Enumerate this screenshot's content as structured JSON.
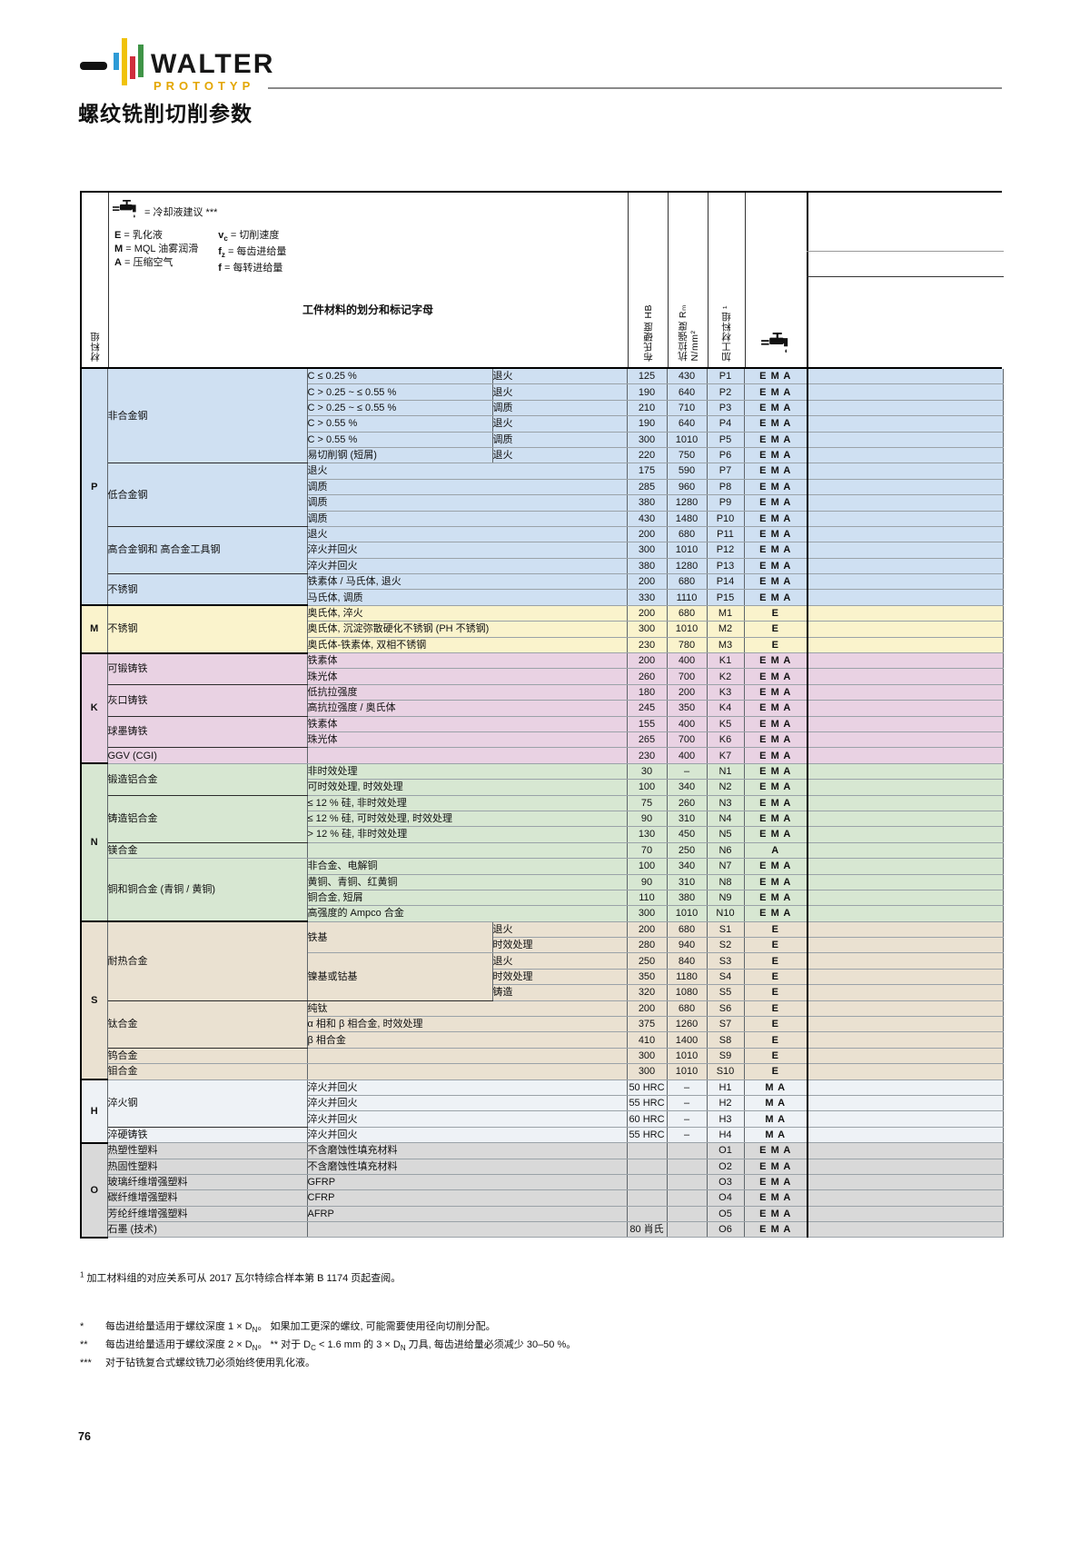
{
  "brand": {
    "name": "WALTER",
    "sub": "PROTOTYP",
    "colors": {
      "blue": "#2e9bd6",
      "yellow": "#f0c20a",
      "red": "#cf2e3d",
      "green": "#3f9447",
      "gold": "#e3a602"
    }
  },
  "title": "螺纹铣削切削参数",
  "legend": {
    "coolant_label": "= 冷却液建议 ***",
    "items_left": [
      {
        "sym": "E",
        "text": "= 乳化液"
      },
      {
        "sym": "M",
        "text": "= MQL 油雾润滑"
      },
      {
        "sym": "A",
        "text": "= 压缩空气"
      }
    ],
    "items_right": [
      {
        "sym": "v",
        "sub": "c",
        "text": "= 切削速度"
      },
      {
        "sym": "f",
        "sub": "z",
        "text": "= 每齿进给量"
      },
      {
        "sym": "f",
        "sub": "",
        "text": "= 每转进给量"
      }
    ]
  },
  "headers": {
    "material_group": "材料组",
    "classification": "工件材料的划分和标记字母",
    "hb": "布氏硬度 HB",
    "rm_line1": "抗拉强度 Rₘ",
    "rm_line2": "N/mm²",
    "machining_group": "加工材料组 ¹"
  },
  "table": {
    "groups": [
      {
        "letter": "P",
        "bg": "#cfe0f2",
        "subgroups": [
          {
            "name": "非合金钢",
            "rows": [
              {
                "desc": "C ≤ 0.25 %",
                "cond": "退火",
                "hb": "125",
                "rm": "430",
                "code": "P1",
                "ema": "E M A"
              },
              {
                "desc": "C > 0.25 ~ ≤ 0.55 %",
                "cond": "退火",
                "hb": "190",
                "rm": "640",
                "code": "P2",
                "ema": "E M A"
              },
              {
                "desc": "C > 0.25 ~ ≤ 0.55 %",
                "cond": "调质",
                "hb": "210",
                "rm": "710",
                "code": "P3",
                "ema": "E M A"
              },
              {
                "desc": "C > 0.55 %",
                "cond": "退火",
                "hb": "190",
                "rm": "640",
                "code": "P4",
                "ema": "E M A"
              },
              {
                "desc": "C > 0.55 %",
                "cond": "调质",
                "hb": "300",
                "rm": "1010",
                "code": "P5",
                "ema": "E M A"
              },
              {
                "desc": "易切削钢 (短屑)",
                "cond": "退火",
                "hb": "220",
                "rm": "750",
                "code": "P6",
                "ema": "E M A"
              }
            ]
          },
          {
            "name": "低合金钢",
            "rows": [
              {
                "desc": "退火",
                "hb": "175",
                "rm": "590",
                "code": "P7",
                "ema": "E M A"
              },
              {
                "desc": "调质",
                "hb": "285",
                "rm": "960",
                "code": "P8",
                "ema": "E M A"
              },
              {
                "desc": "调质",
                "hb": "380",
                "rm": "1280",
                "code": "P9",
                "ema": "E M A"
              },
              {
                "desc": "调质",
                "hb": "430",
                "rm": "1480",
                "code": "P10",
                "ema": "E M A"
              }
            ]
          },
          {
            "name": "高合金钢和\n高合金工具钢",
            "rows": [
              {
                "desc": "退火",
                "hb": "200",
                "rm": "680",
                "code": "P11",
                "ema": "E M A"
              },
              {
                "desc": "淬火并回火",
                "hb": "300",
                "rm": "1010",
                "code": "P12",
                "ema": "E M A"
              },
              {
                "desc": "淬火并回火",
                "hb": "380",
                "rm": "1280",
                "code": "P13",
                "ema": "E M A"
              }
            ]
          },
          {
            "name": "不锈钢",
            "rows": [
              {
                "desc": "铁素体 / 马氏体, 退火",
                "hb": "200",
                "rm": "680",
                "code": "P14",
                "ema": "E M A"
              },
              {
                "desc": "马氏体, 调质",
                "hb": "330",
                "rm": "1110",
                "code": "P15",
                "ema": "E M A"
              }
            ]
          }
        ]
      },
      {
        "letter": "M",
        "bg": "#faf3cc",
        "subgroups": [
          {
            "name": "不锈钢",
            "rows": [
              {
                "desc": "奥氏体, 淬火",
                "hb": "200",
                "rm": "680",
                "code": "M1",
                "ema": "E"
              },
              {
                "desc": "奥氏体, 沉淀弥散硬化不锈钢 (PH 不锈钢)",
                "hb": "300",
                "rm": "1010",
                "code": "M2",
                "ema": "E"
              },
              {
                "desc": "奥氏体-铁素体, 双相不锈钢",
                "hb": "230",
                "rm": "780",
                "code": "M3",
                "ema": "E"
              }
            ]
          }
        ]
      },
      {
        "letter": "K",
        "bg": "#e9d2e3",
        "subgroups": [
          {
            "name": "可锻铸铁",
            "rows": [
              {
                "desc": "铁素体",
                "hb": "200",
                "rm": "400",
                "code": "K1",
                "ema": "E M A"
              },
              {
                "desc": "珠光体",
                "hb": "260",
                "rm": "700",
                "code": "K2",
                "ema": "E M A"
              }
            ]
          },
          {
            "name": "灰口铸铁",
            "rows": [
              {
                "desc": "低抗拉强度",
                "hb": "180",
                "rm": "200",
                "code": "K3",
                "ema": "E M A"
              },
              {
                "desc": "高抗拉强度 / 奥氏体",
                "hb": "245",
                "rm": "350",
                "code": "K4",
                "ema": "E M A"
              }
            ]
          },
          {
            "name": "球墨铸铁",
            "rows": [
              {
                "desc": "铁素体",
                "hb": "155",
                "rm": "400",
                "code": "K5",
                "ema": "E M A"
              },
              {
                "desc": "珠光体",
                "hb": "265",
                "rm": "700",
                "code": "K6",
                "ema": "E M A"
              }
            ]
          },
          {
            "name": "GGV (CGI)",
            "rows": [
              {
                "desc": "",
                "hb": "230",
                "rm": "400",
                "code": "K7",
                "ema": "E M A"
              }
            ]
          }
        ]
      },
      {
        "letter": "N",
        "bg": "#d7e7d2",
        "subgroups": [
          {
            "name": "锻造铝合金",
            "rows": [
              {
                "desc": "非时效处理",
                "hb": "30",
                "rm": "–",
                "code": "N1",
                "ema": "E M A"
              },
              {
                "desc": "可时效处理, 时效处理",
                "hb": "100",
                "rm": "340",
                "code": "N2",
                "ema": "E M A"
              }
            ]
          },
          {
            "name": "铸造铝合金",
            "rows": [
              {
                "desc": "≤ 12 % 硅, 非时效处理",
                "hb": "75",
                "rm": "260",
                "code": "N3",
                "ema": "E M A"
              },
              {
                "desc": "≤ 12 % 硅, 可时效处理, 时效处理",
                "hb": "90",
                "rm": "310",
                "code": "N4",
                "ema": "E M A"
              },
              {
                "desc": "> 12 % 硅, 非时效处理",
                "hb": "130",
                "rm": "450",
                "code": "N5",
                "ema": "E M A"
              }
            ]
          },
          {
            "name": "镁合金",
            "rows": [
              {
                "desc": "",
                "hb": "70",
                "rm": "250",
                "code": "N6",
                "ema": "A"
              }
            ]
          },
          {
            "name": "铜和铜合金 (青铜 / 黄铜)",
            "rows": [
              {
                "desc": "非合金、电解铜",
                "hb": "100",
                "rm": "340",
                "code": "N7",
                "ema": "E M A"
              },
              {
                "desc": "黄铜、青铜、红黄铜",
                "hb": "90",
                "rm": "310",
                "code": "N8",
                "ema": "E M A"
              },
              {
                "desc": "铜合金, 短屑",
                "hb": "110",
                "rm": "380",
                "code": "N9",
                "ema": "E M A"
              },
              {
                "desc": "高强度的 Ampco 合金",
                "hb": "300",
                "rm": "1010",
                "code": "N10",
                "ema": "E M A"
              }
            ]
          }
        ]
      },
      {
        "letter": "S",
        "bg": "#eae1d1",
        "subgroups": [
          {
            "name": "耐热合金",
            "rows": [
              {
                "desc": "铁基",
                "descSpan": 2,
                "cond": "退火",
                "hb": "200",
                "rm": "680",
                "code": "S1",
                "ema": "E"
              },
              {
                "descCont": true,
                "cond": "时效处理",
                "hb": "280",
                "rm": "940",
                "code": "S2",
                "ema": "E"
              },
              {
                "desc": "镍基或钴基",
                "descSpan": 3,
                "cond": "退火",
                "hb": "250",
                "rm": "840",
                "code": "S3",
                "ema": "E"
              },
              {
                "descCont": true,
                "cond": "时效处理",
                "hb": "350",
                "rm": "1180",
                "code": "S4",
                "ema": "E"
              },
              {
                "descCont": true,
                "cond": "铸造",
                "hb": "320",
                "rm": "1080",
                "code": "S5",
                "ema": "E"
              }
            ]
          },
          {
            "name": "钛合金",
            "rows": [
              {
                "desc": "纯钛",
                "hb": "200",
                "rm": "680",
                "code": "S6",
                "ema": "E"
              },
              {
                "desc": "α 相和 β 相合金, 时效处理",
                "hb": "375",
                "rm": "1260",
                "code": "S7",
                "ema": "E"
              },
              {
                "desc": "β 相合金",
                "hb": "410",
                "rm": "1400",
                "code": "S8",
                "ema": "E"
              }
            ]
          },
          {
            "name": "钨合金",
            "rows": [
              {
                "desc": "",
                "hb": "300",
                "rm": "1010",
                "code": "S9",
                "ema": "E"
              }
            ]
          },
          {
            "name": "钼合金",
            "rows": [
              {
                "desc": "",
                "hb": "300",
                "rm": "1010",
                "code": "S10",
                "ema": "E"
              }
            ]
          }
        ]
      },
      {
        "letter": "H",
        "bg": "#eef2f6",
        "subgroups": [
          {
            "name": "淬火钢",
            "rows": [
              {
                "desc": "淬火并回火",
                "hb": "50 HRC",
                "rm": "–",
                "code": "H1",
                "ema": "M A"
              },
              {
                "desc": "淬火并回火",
                "hb": "55 HRC",
                "rm": "–",
                "code": "H2",
                "ema": "M A"
              },
              {
                "desc": "淬火并回火",
                "hb": "60 HRC",
                "rm": "–",
                "code": "H3",
                "ema": "M A"
              }
            ]
          },
          {
            "name": "淬硬铸铁",
            "rows": [
              {
                "desc": "淬火并回火",
                "hb": "55 HRC",
                "rm": "–",
                "code": "H4",
                "ema": "M A"
              }
            ]
          }
        ]
      },
      {
        "letter": "O",
        "bg": "#d9d9d9",
        "subgroups": [
          {
            "name": "热塑性塑料",
            "rows": [
              {
                "desc": "不含磨蚀性填充材料",
                "hb": "",
                "rm": "",
                "code": "O1",
                "ema": "E M A"
              }
            ]
          },
          {
            "name": "热固性塑料",
            "rows": [
              {
                "desc": "不含磨蚀性填充材料",
                "hb": "",
                "rm": "",
                "code": "O2",
                "ema": "E M A"
              }
            ]
          },
          {
            "name": "玻璃纤维增强塑料",
            "rows": [
              {
                "desc": "GFRP",
                "hb": "",
                "rm": "",
                "code": "O3",
                "ema": "E M A"
              }
            ]
          },
          {
            "name": "碳纤维增强塑料",
            "rows": [
              {
                "desc": "CFRP",
                "hb": "",
                "rm": "",
                "code": "O4",
                "ema": "E M A"
              }
            ]
          },
          {
            "name": "芳纶纤维增强塑料",
            "rows": [
              {
                "desc": "AFRP",
                "hb": "",
                "rm": "",
                "code": "O5",
                "ema": "E M A"
              }
            ]
          },
          {
            "name": "石墨 (技术)",
            "rows": [
              {
                "desc": "",
                "hb": "80 肖氏",
                "rm": "",
                "code": "O6",
                "ema": "E M A"
              }
            ]
          }
        ]
      }
    ]
  },
  "footnotes": {
    "ref1": [
      {
        "sup": "1"
      },
      {
        "t": " 加工材料组的对应关系可从 2017 瓦尔特综合样本第 B 1174 页起查阅。"
      }
    ],
    "stars": [
      {
        "marker": "*",
        "parts": [
          {
            "t": "每齿进给量适用于螺纹深度 1 × D"
          },
          {
            "sub": "N"
          },
          {
            "t": "。 如果加工更深的螺纹, 可能需要使用径向切削分配。"
          }
        ]
      },
      {
        "marker": "**",
        "parts": [
          {
            "t": "每齿进给量适用于螺纹深度 2 × D"
          },
          {
            "sub": "N"
          },
          {
            "t": "。 ** 对于 D"
          },
          {
            "sub": "C"
          },
          {
            "t": " < 1.6 mm 的 3 × D"
          },
          {
            "sub": "N"
          },
          {
            "t": " 刀具, 每齿进给量必须减少 30–50 %。"
          }
        ]
      },
      {
        "marker": "***",
        "parts": [
          {
            "t": "对于钻铣复合式螺纹铣刀必须始终使用乳化液。"
          }
        ]
      }
    ]
  },
  "page_number": "76"
}
